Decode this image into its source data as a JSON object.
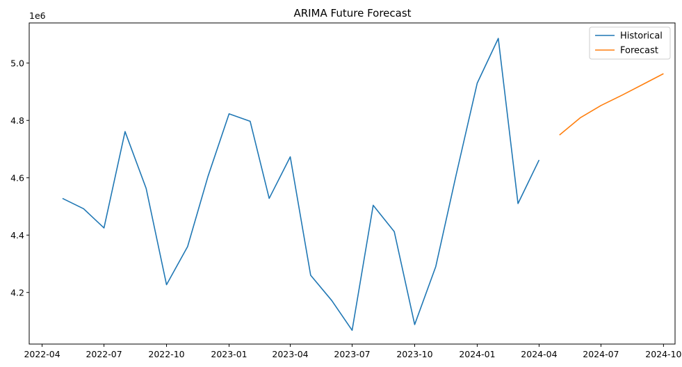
{
  "chart_data": {
    "type": "line",
    "title": "ARIMA Future Forecast",
    "xlabel": "",
    "ylabel": "",
    "y_offset_label": "1e6",
    "y_multiplier": 1000000,
    "x_axis_type": "date",
    "xlim": [
      "2022-03-13",
      "2024-10-18"
    ],
    "ylim": [
      4.02,
      5.14
    ],
    "x_ticks": [
      "2022-04-01",
      "2022-07-01",
      "2022-10-01",
      "2023-01-01",
      "2023-04-01",
      "2023-07-01",
      "2023-10-01",
      "2024-01-01",
      "2024-04-01",
      "2024-07-01",
      "2024-10-01"
    ],
    "x_tick_labels": [
      "2022-04",
      "2022-07",
      "2022-10",
      "2023-01",
      "2023-04",
      "2023-07",
      "2023-10",
      "2024-01",
      "2024-04",
      "2024-07",
      "2024-10"
    ],
    "y_ticks": [
      4.2,
      4.4,
      4.6,
      4.8,
      5.0
    ],
    "y_tick_labels": [
      "4.2",
      "4.4",
      "4.6",
      "4.8",
      "5.0"
    ],
    "grid": false,
    "legend_position": "top-right",
    "series": [
      {
        "name": "Historical",
        "color": "#1f77b4",
        "x": [
          "2022-05-01",
          "2022-06-01",
          "2022-07-01",
          "2022-08-01",
          "2022-09-01",
          "2022-10-01",
          "2022-11-01",
          "2022-12-01",
          "2023-01-01",
          "2023-02-01",
          "2023-03-01",
          "2023-04-01",
          "2023-05-01",
          "2023-06-01",
          "2023-07-01",
          "2023-08-01",
          "2023-09-01",
          "2023-10-01",
          "2023-11-01",
          "2023-12-01",
          "2024-01-01",
          "2024-02-01",
          "2024-03-01",
          "2024-04-01"
        ],
        "y": [
          4.528,
          4.492,
          4.425,
          4.761,
          4.563,
          4.227,
          4.36,
          4.605,
          4.823,
          4.797,
          4.528,
          4.673,
          4.26,
          4.172,
          4.068,
          4.504,
          4.412,
          4.088,
          4.29,
          4.61,
          4.93,
          5.086,
          4.51,
          4.662
        ]
      },
      {
        "name": "Forecast",
        "color": "#ff7f0e",
        "x": [
          "2024-05-01",
          "2024-06-01",
          "2024-07-01",
          "2024-08-01",
          "2024-09-01",
          "2024-10-01"
        ],
        "y": [
          4.749,
          4.81,
          4.852,
          4.888,
          4.926,
          4.963
        ]
      }
    ]
  }
}
